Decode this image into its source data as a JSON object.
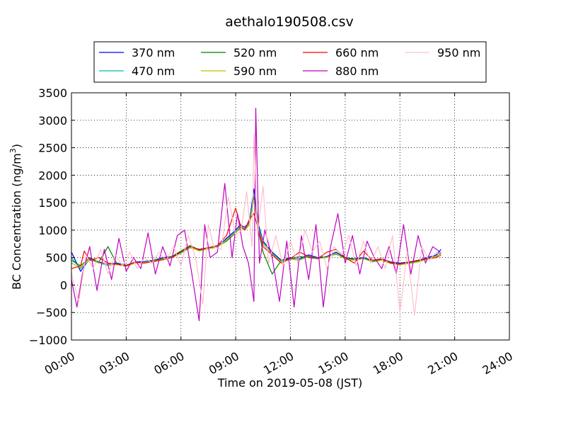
{
  "chart_data": {
    "type": "line",
    "title": "aethalo190508.csv",
    "xlabel": "Time on 2019-05-08 (JST)",
    "ylabel_main": "BC Concentration (ng/m",
    "ylabel_sup": "3",
    "ylabel_close": ")",
    "x_unit": "hours",
    "xlim": [
      0,
      24
    ],
    "ylim": [
      -1000,
      3500
    ],
    "x_ticks": [
      0,
      3,
      6,
      9,
      12,
      15,
      18,
      21,
      24
    ],
    "x_tick_labels": [
      "00:00",
      "03:00",
      "06:00",
      "09:00",
      "12:00",
      "15:00",
      "18:00",
      "21:00",
      "24:00"
    ],
    "y_ticks": [
      -1000,
      -500,
      0,
      500,
      1000,
      1500,
      2000,
      2500,
      3000,
      3500
    ],
    "y_tick_labels": [
      "−1000",
      "−500",
      "0",
      "500",
      "1000",
      "1500",
      "2000",
      "2500",
      "3000",
      "3500"
    ],
    "grid": true,
    "legend_position": "top",
    "series": [
      {
        "name": "370 nm",
        "color": "#0000ff",
        "x": [
          0,
          0.5,
          1,
          1.5,
          2,
          2.5,
          3,
          3.5,
          4,
          4.5,
          5,
          5.5,
          6,
          6.5,
          7,
          7.5,
          8,
          8.5,
          9,
          9.25,
          9.5,
          9.75,
          10,
          10.25,
          10.5,
          11,
          11.5,
          12,
          12.5,
          13,
          13.5,
          14,
          14.5,
          15,
          15.5,
          16,
          16.5,
          17,
          17.5,
          18,
          18.5,
          19,
          19.5,
          20,
          20.25
        ],
        "y": [
          600,
          250,
          480,
          420,
          380,
          400,
          360,
          420,
          430,
          450,
          500,
          520,
          600,
          700,
          650,
          680,
          700,
          850,
          1000,
          1100,
          1050,
          1150,
          1750,
          1100,
          800,
          600,
          450,
          500,
          480,
          550,
          500,
          520,
          600,
          500,
          480,
          500,
          450,
          480,
          420,
          400,
          420,
          450,
          500,
          550,
          650
        ]
      },
      {
        "name": "470 nm",
        "color": "#00c0a0",
        "x": [
          0,
          0.5,
          1,
          1.5,
          2,
          2.5,
          3,
          3.5,
          4,
          4.5,
          5,
          5.5,
          6,
          6.5,
          7,
          7.5,
          8,
          8.5,
          9,
          9.25,
          9.5,
          9.75,
          10,
          10.25,
          10.5,
          11,
          11.5,
          12,
          12.5,
          13,
          13.5,
          14,
          14.5,
          15,
          15.5,
          16,
          16.5,
          17,
          17.5,
          18,
          18.5,
          19,
          19.5,
          20,
          20.25
        ],
        "y": [
          500,
          300,
          460,
          400,
          360,
          380,
          350,
          400,
          420,
          440,
          480,
          500,
          580,
          680,
          630,
          660,
          690,
          830,
          980,
          1080,
          1020,
          1120,
          1650,
          1050,
          780,
          580,
          430,
          480,
          460,
          530,
          490,
          500,
          580,
          480,
          460,
          490,
          430,
          460,
          400,
          380,
          400,
          430,
          480,
          530,
          600
        ]
      },
      {
        "name": "520 nm",
        "color": "#008000",
        "x": [
          0,
          0.5,
          1,
          1.5,
          2,
          2.5,
          3,
          3.5,
          4,
          4.5,
          5,
          5.5,
          6,
          6.5,
          7,
          7.5,
          8,
          8.5,
          9,
          9.25,
          9.5,
          9.75,
          10,
          10.25,
          10.5,
          11,
          11.5,
          12,
          12.5,
          13,
          13.5,
          14,
          14.5,
          15,
          15.5,
          16,
          16.5,
          17,
          17.5,
          18,
          18.5,
          19,
          19.5,
          20,
          20.25
        ],
        "y": [
          450,
          350,
          500,
          420,
          700,
          380,
          360,
          420,
          400,
          450,
          480,
          520,
          620,
          720,
          640,
          680,
          700,
          800,
          950,
          1050,
          1000,
          1100,
          1600,
          1000,
          600,
          200,
          450,
          480,
          520,
          500,
          480,
          520,
          560,
          500,
          470,
          480,
          440,
          470,
          410,
          390,
          410,
          440,
          490,
          520,
          580
        ]
      },
      {
        "name": "590 nm",
        "color": "#c0c000",
        "x": [
          0,
          0.5,
          1,
          1.5,
          2,
          2.5,
          3,
          3.5,
          4,
          4.5,
          5,
          5.5,
          6,
          6.5,
          7,
          7.5,
          8,
          8.5,
          9,
          9.25,
          9.5,
          9.75,
          10,
          10.25,
          10.5,
          11,
          11.5,
          12,
          12.5,
          13,
          13.5,
          14,
          14.5,
          15,
          15.5,
          16,
          16.5,
          17,
          17.5,
          18,
          18.5,
          19,
          19.5,
          20,
          20.25
        ],
        "y": [
          400,
          320,
          470,
          400,
          380,
          370,
          340,
          400,
          410,
          430,
          470,
          500,
          590,
          690,
          620,
          660,
          690,
          820,
          960,
          1060,
          1000,
          1100,
          1550,
          1000,
          750,
          560,
          420,
          470,
          450,
          520,
          480,
          500,
          570,
          470,
          450,
          480,
          420,
          450,
          390,
          370,
          390,
          420,
          470,
          520,
          590
        ]
      },
      {
        "name": "660 nm",
        "color": "#ff0000",
        "x": [
          0,
          0.5,
          0.7,
          1,
          1.5,
          2,
          2.5,
          3,
          3.5,
          4,
          4.5,
          5,
          5.5,
          6,
          6.5,
          7,
          7.5,
          8,
          8.5,
          9,
          9.25,
          9.5,
          9.75,
          10,
          10.25,
          10.5,
          11,
          11.5,
          12,
          12.5,
          13,
          13.5,
          14,
          14.5,
          15,
          15.5,
          16,
          16.5,
          17,
          17.5,
          18,
          18.5,
          19,
          19.5,
          20,
          20.25
        ],
        "y": [
          300,
          350,
          620,
          450,
          500,
          400,
          380,
          350,
          420,
          400,
          430,
          460,
          500,
          600,
          700,
          650,
          680,
          720,
          900,
          1400,
          1100,
          1000,
          1200,
          1300,
          1000,
          700,
          550,
          400,
          480,
          600,
          520,
          480,
          600,
          650,
          500,
          400,
          620,
          450,
          480,
          400,
          380,
          420,
          450,
          480,
          500,
          550
        ]
      },
      {
        "name": "880 nm",
        "color": "#c000c0",
        "x": [
          0,
          0.3,
          0.6,
          1,
          1.4,
          1.8,
          2.2,
          2.6,
          3,
          3.4,
          3.8,
          4.2,
          4.6,
          5,
          5.4,
          5.8,
          6.2,
          6.6,
          7,
          7.3,
          7.6,
          8,
          8.4,
          8.8,
          9.1,
          9.4,
          9.7,
          10,
          10.1,
          10.3,
          10.6,
          11,
          11.4,
          11.8,
          12.2,
          12.6,
          13,
          13.4,
          13.8,
          14.2,
          14.6,
          15,
          15.4,
          15.8,
          16.2,
          16.6,
          17,
          17.4,
          17.8,
          18.2,
          18.6,
          19,
          19.4,
          19.8,
          20.2
        ],
        "y": [
          100,
          -400,
          200,
          700,
          -100,
          650,
          100,
          850,
          250,
          500,
          300,
          950,
          200,
          700,
          350,
          900,
          1000,
          200,
          -650,
          1100,
          500,
          600,
          1850,
          500,
          1300,
          700,
          400,
          -300,
          3220,
          400,
          1000,
          500,
          -300,
          800,
          -400,
          900,
          100,
          1100,
          -400,
          700,
          1300,
          400,
          900,
          200,
          800,
          500,
          300,
          700,
          200,
          1100,
          200,
          900,
          400,
          700,
          600
        ]
      },
      {
        "name": "950 nm",
        "color": "#ffc0cb",
        "x": [
          0,
          0.4,
          0.8,
          1.2,
          1.6,
          2,
          2.4,
          2.8,
          3.2,
          3.6,
          4,
          4.4,
          4.8,
          5.2,
          5.6,
          6,
          6.4,
          6.8,
          7.2,
          7.5,
          7.8,
          8.2,
          8.6,
          9,
          9.3,
          9.6,
          9.9,
          10,
          10.2,
          10.5,
          10.8,
          11.2,
          11.6,
          12,
          12.4,
          12.8,
          13.2,
          13.6,
          14,
          14.4,
          14.8,
          15.2,
          15.6,
          16,
          16.4,
          16.8,
          17.2,
          17.6,
          18,
          18.4,
          18.8,
          19.2,
          19.6,
          20,
          20.25
        ],
        "y": [
          200,
          -300,
          550,
          300,
          650,
          200,
          550,
          350,
          600,
          300,
          500,
          400,
          600,
          450,
          700,
          350,
          900,
          500,
          -350,
          1100,
          700,
          650,
          1600,
          900,
          1000,
          1700,
          700,
          2750,
          900,
          1800,
          400,
          900,
          350,
          800,
          400,
          1000,
          600,
          800,
          300,
          700,
          550,
          900,
          350,
          800,
          400,
          700,
          300,
          900,
          -500,
          600,
          -550,
          700,
          450,
          600,
          500
        ]
      }
    ]
  }
}
